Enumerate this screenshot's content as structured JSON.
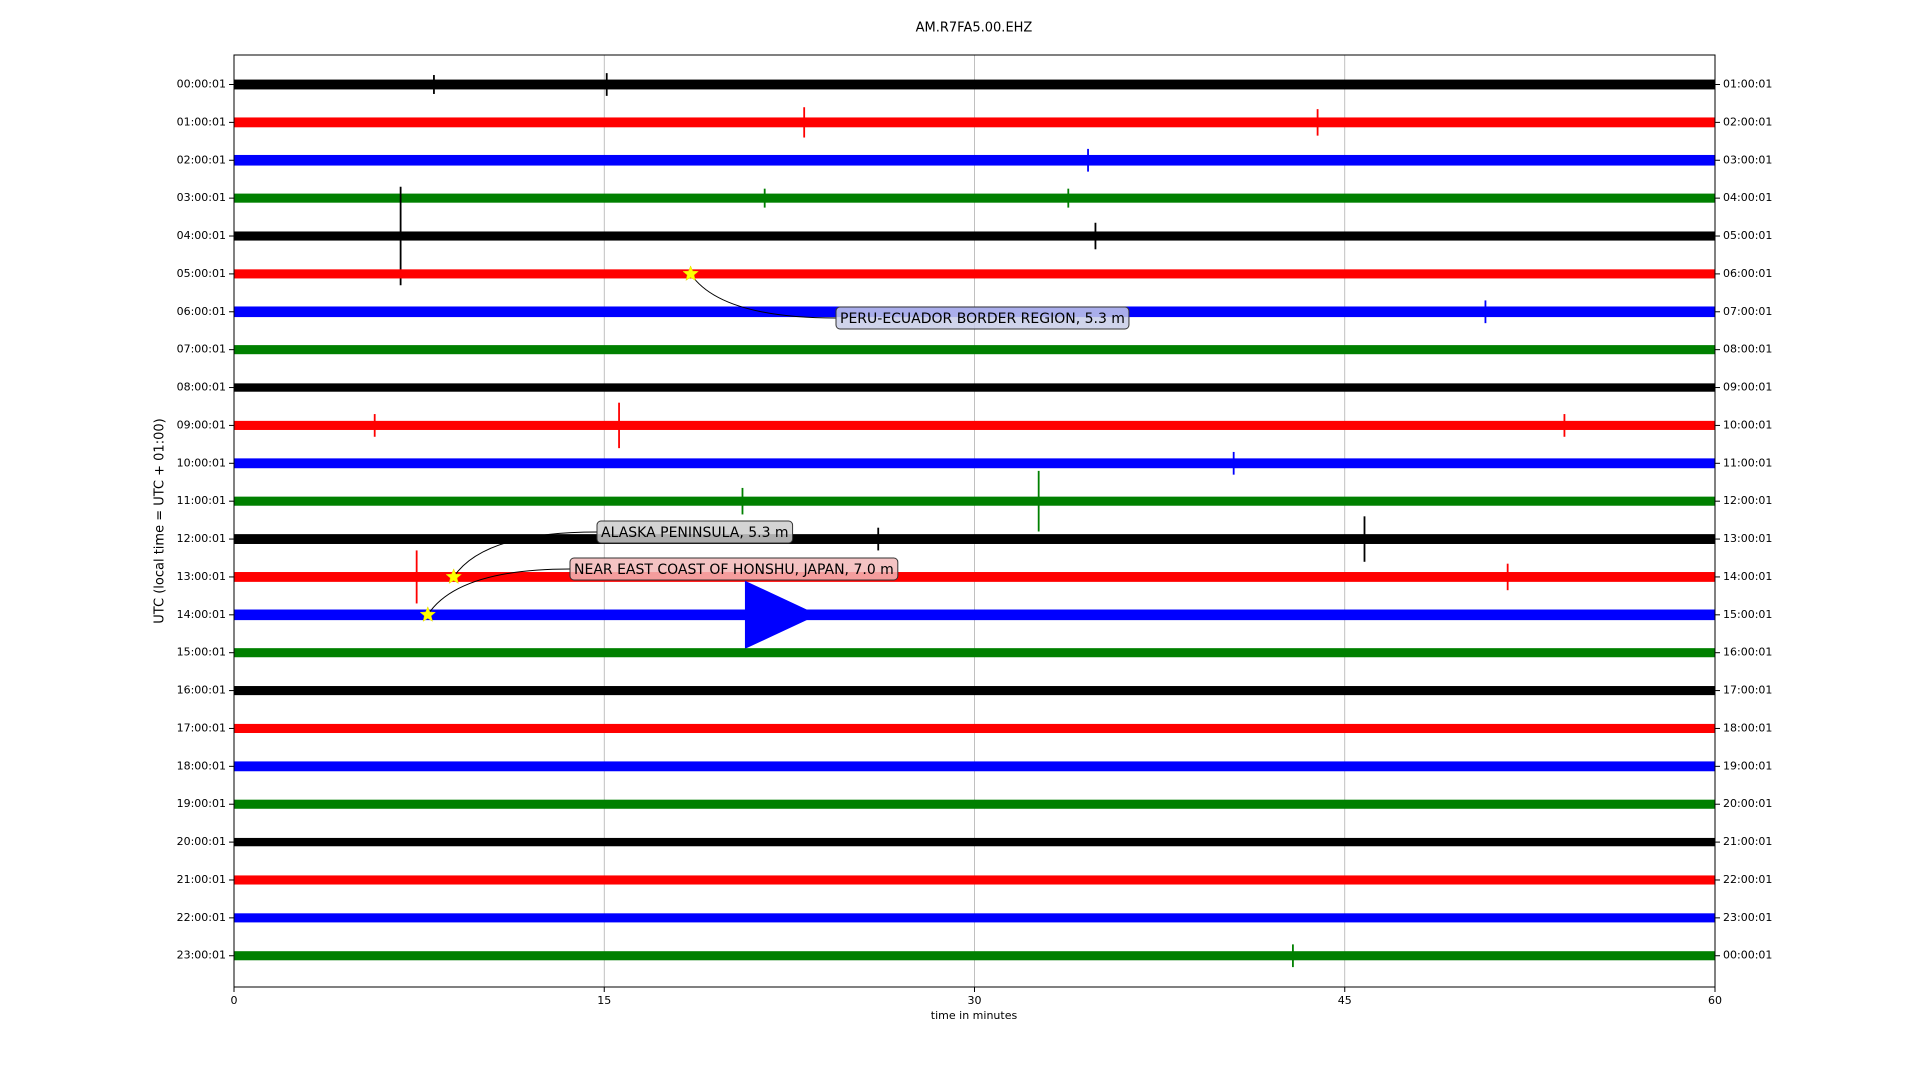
{
  "chart_data": {
    "type": "dayplot",
    "title": "AM.R7FA5.00.EHZ",
    "xlabel": "time in minutes",
    "ylabel": "UTC (local time = UTC + 01:00)",
    "xlim": [
      0,
      60
    ],
    "xticks": [
      0,
      15,
      30,
      45,
      60
    ],
    "grid": true,
    "rows": [
      {
        "label_left": "00:00:01",
        "label_right": "01:00:01",
        "color": "#000000",
        "noise": 0.13,
        "events": [
          {
            "x": 8.1,
            "amp": 0.25
          },
          {
            "x": 15.1,
            "amp": 0.3
          }
        ]
      },
      {
        "label_left": "01:00:01",
        "label_right": "02:00:01",
        "color": "#ff0000",
        "noise": 0.13,
        "events": [
          {
            "x": 23.1,
            "amp": 0.4
          },
          {
            "x": 43.9,
            "amp": 0.35
          }
        ]
      },
      {
        "label_left": "02:00:01",
        "label_right": "03:00:01",
        "color": "#0000ff",
        "noise": 0.14,
        "events": [
          {
            "x": 34.6,
            "amp": 0.3
          }
        ]
      },
      {
        "label_left": "03:00:01",
        "label_right": "04:00:01",
        "color": "#008000",
        "noise": 0.12,
        "events": [
          {
            "x": 21.5,
            "amp": 0.25
          },
          {
            "x": 33.8,
            "amp": 0.25
          }
        ]
      },
      {
        "label_left": "04:00:01",
        "label_right": "05:00:01",
        "color": "#000000",
        "noise": 0.12,
        "events": [
          {
            "x": 6.75,
            "amp": 1.3
          },
          {
            "x": 34.9,
            "amp": 0.35
          }
        ]
      },
      {
        "label_left": "05:00:01",
        "label_right": "06:00:01",
        "color": "#ff0000",
        "noise": 0.12,
        "events": []
      },
      {
        "label_left": "06:00:01",
        "label_right": "07:00:01",
        "color": "#0000ff",
        "noise": 0.14,
        "events": [
          {
            "x": 50.7,
            "amp": 0.3
          }
        ]
      },
      {
        "label_left": "07:00:01",
        "label_right": "08:00:01",
        "color": "#008000",
        "noise": 0.12,
        "events": []
      },
      {
        "label_left": "08:00:01",
        "label_right": "09:00:01",
        "color": "#000000",
        "noise": 0.11,
        "events": []
      },
      {
        "label_left": "09:00:01",
        "label_right": "10:00:01",
        "color": "#ff0000",
        "noise": 0.12,
        "events": [
          {
            "x": 5.7,
            "amp": 0.3
          },
          {
            "x": 15.6,
            "amp": 0.6
          },
          {
            "x": 53.9,
            "amp": 0.3
          }
        ]
      },
      {
        "label_left": "10:00:01",
        "label_right": "11:00:01",
        "color": "#0000ff",
        "noise": 0.13,
        "events": [
          {
            "x": 40.5,
            "amp": 0.3
          }
        ]
      },
      {
        "label_left": "11:00:01",
        "label_right": "12:00:01",
        "color": "#008000",
        "noise": 0.12,
        "events": [
          {
            "x": 20.6,
            "amp": 0.35
          },
          {
            "x": 32.6,
            "amp": 0.8
          }
        ]
      },
      {
        "label_left": "12:00:01",
        "label_right": "13:00:01",
        "color": "#000000",
        "noise": 0.13,
        "events": [
          {
            "x": 26.1,
            "amp": 0.3
          },
          {
            "x": 45.8,
            "amp": 0.6
          }
        ]
      },
      {
        "label_left": "13:00:01",
        "label_right": "14:00:01",
        "color": "#ff0000",
        "noise": 0.13,
        "events": [
          {
            "x": 7.4,
            "amp": 0.7
          },
          {
            "x": 51.6,
            "amp": 0.35
          }
        ]
      },
      {
        "label_left": "14:00:01",
        "label_right": "15:00:01",
        "color": "#0000ff",
        "noise": 0.14,
        "events": [
          {
            "x": 20.7,
            "amp": 0.9,
            "dur": 2.5
          }
        ]
      },
      {
        "label_left": "15:00:01",
        "label_right": "16:00:01",
        "color": "#008000",
        "noise": 0.12,
        "events": []
      },
      {
        "label_left": "16:00:01",
        "label_right": "17:00:01",
        "color": "#000000",
        "noise": 0.12,
        "events": []
      },
      {
        "label_left": "17:00:01",
        "label_right": "18:00:01",
        "color": "#ff0000",
        "noise": 0.12,
        "events": []
      },
      {
        "label_left": "18:00:01",
        "label_right": "19:00:01",
        "color": "#0000ff",
        "noise": 0.13,
        "events": []
      },
      {
        "label_left": "19:00:01",
        "label_right": "20:00:01",
        "color": "#008000",
        "noise": 0.12,
        "events": []
      },
      {
        "label_left": "20:00:01",
        "label_right": "21:00:01",
        "color": "#000000",
        "noise": 0.11,
        "events": []
      },
      {
        "label_left": "21:00:01",
        "label_right": "22:00:01",
        "color": "#ff0000",
        "noise": 0.12,
        "events": []
      },
      {
        "label_left": "22:00:01",
        "label_right": "23:00:01",
        "color": "#0000ff",
        "noise": 0.12,
        "events": []
      },
      {
        "label_left": "23:00:01",
        "label_right": "00:00:01",
        "color": "#008000",
        "noise": 0.12,
        "events": [
          {
            "x": 42.9,
            "amp": 0.3
          }
        ]
      }
    ],
    "annotations": [
      {
        "text": "PERU-ECUADOR BORDER REGION, 5.3 m",
        "x": 18.5,
        "row": 5,
        "color": "#c8cce8"
      },
      {
        "text": "ALASKA PENINSULA, 5.3 m",
        "x": 8.9,
        "row": 13,
        "color": "#cccccc"
      },
      {
        "text": "NEAR EAST COAST OF HONSHU, JAPAN, 7.0 m",
        "x": 7.85,
        "row": 14,
        "color": "#f2b8b8"
      }
    ]
  }
}
